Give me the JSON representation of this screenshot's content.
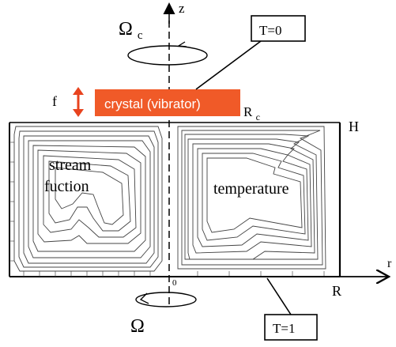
{
  "labels": {
    "axis_z": "z",
    "axis_r": "r",
    "omega_c": "Ωc",
    "omega": "Ω",
    "frequency": "f",
    "crystal": "crystal (vibrator)",
    "crystal_radius": "Rc",
    "height": "H",
    "radius": "R",
    "origin": "0",
    "top_temperature": "T=0",
    "bottom_temperature": "T=1",
    "left_region_line1": "stream",
    "left_region_line2": "fuction",
    "right_region": "temperature"
  },
  "colors": {
    "crystal_fill": "#f05a28",
    "crystal_text": "#ffffff",
    "arrow_red": "#e8431e",
    "line": "#000000",
    "contour": "#444444"
  },
  "icons": {
    "rotation_top": "rotation-ellipse-arrow-icon",
    "rotation_bottom": "rotation-ellipse-arrow-icon",
    "vibration": "double-arrow-vertical-icon"
  }
}
